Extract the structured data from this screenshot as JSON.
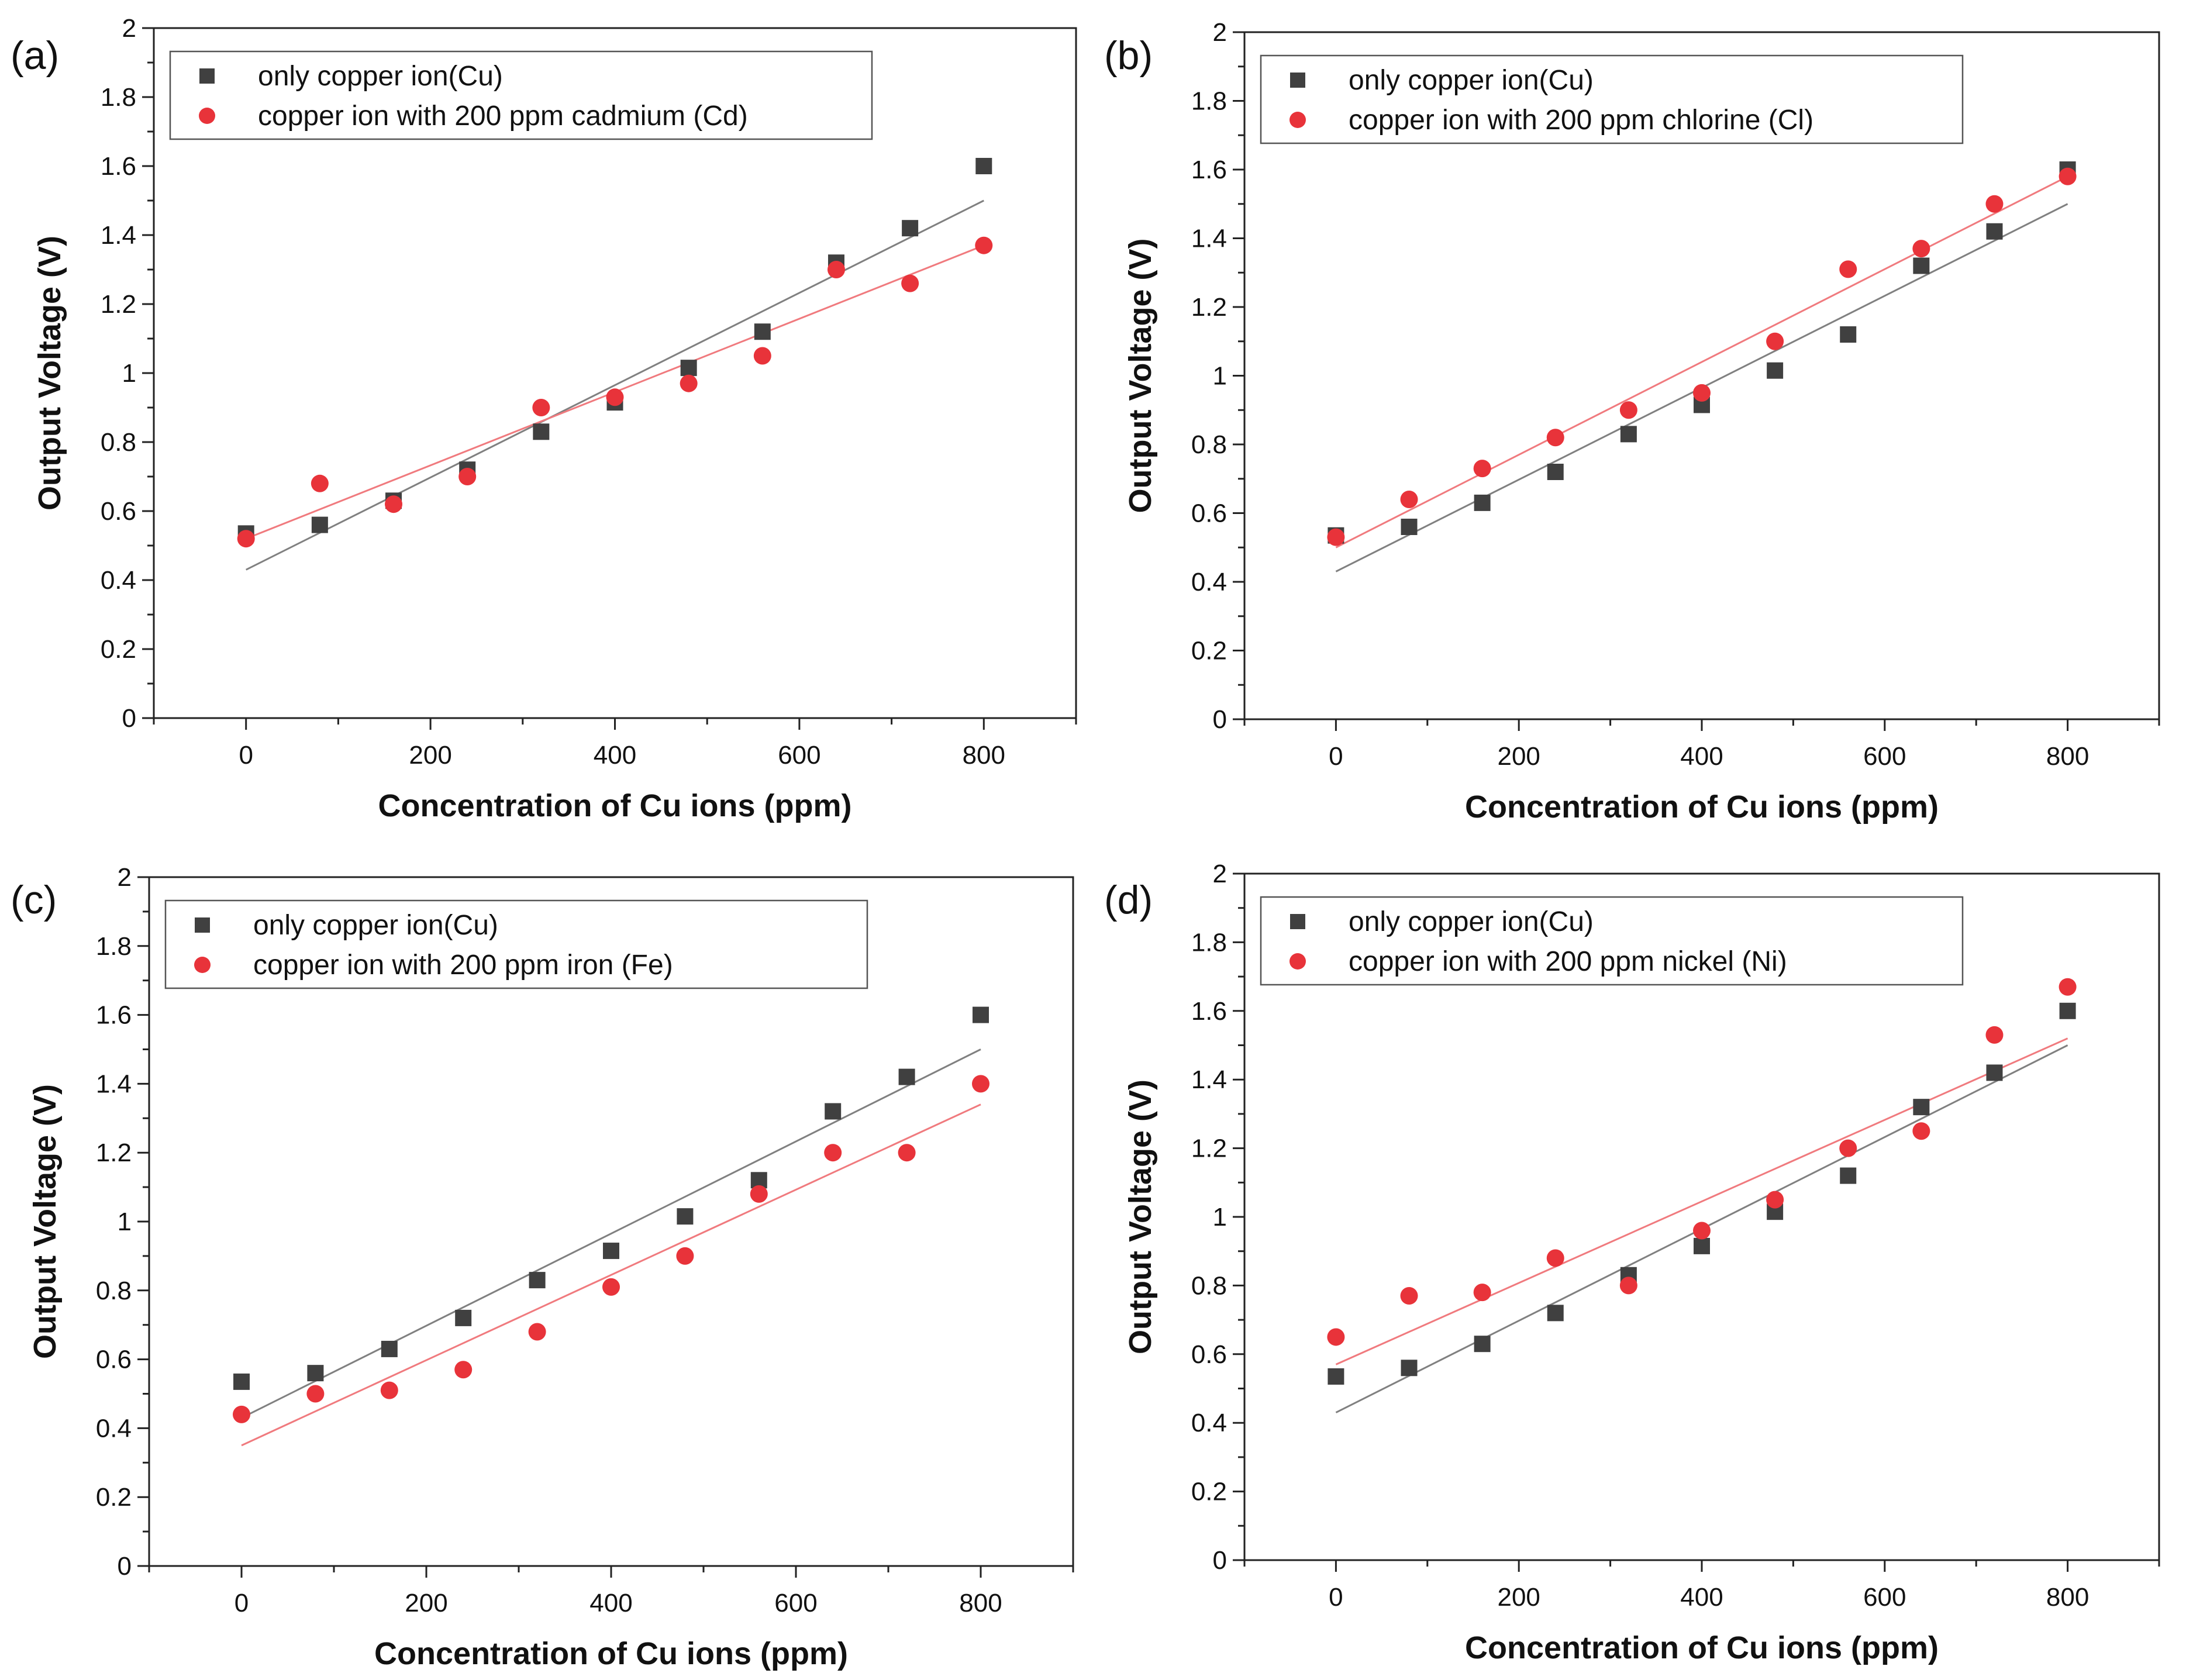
{
  "chart_data": [
    {
      "type": "scatter",
      "panel_label": "(a)",
      "xlabel": "Concentration of Cu ions (ppm)",
      "ylabel": "Output Voltage (V)",
      "xlim": [
        -100,
        900
      ],
      "ylim": [
        0,
        2
      ],
      "xticks": [
        "0",
        "200",
        "400",
        "600",
        "800"
      ],
      "yticks": [
        "0",
        "0.2",
        "0.4",
        "0.6",
        "0.8",
        "1",
        "1.2",
        "1.4",
        "1.6",
        "1.8",
        "2"
      ],
      "legend_position": "top-left",
      "grid": false,
      "series": [
        {
          "name": "only copper ion(Cu)",
          "marker": "square",
          "color": "#404040",
          "x": [
            0,
            80,
            160,
            240,
            320,
            400,
            480,
            560,
            640,
            720,
            800
          ],
          "y": [
            0.535,
            0.56,
            0.63,
            0.72,
            0.83,
            0.915,
            1.015,
            1.12,
            1.32,
            1.42,
            1.6
          ],
          "fit": [
            0.43,
            1.5
          ]
        },
        {
          "name": "copper ion with 200 ppm cadmium (Cd)",
          "marker": "circle",
          "color": "#e8333a",
          "x": [
            0,
            80,
            160,
            240,
            320,
            400,
            480,
            560,
            640,
            720,
            800
          ],
          "y": [
            0.52,
            0.68,
            0.62,
            0.7,
            0.9,
            0.93,
            0.97,
            1.05,
            1.3,
            1.26,
            1.37
          ],
          "fit": [
            0.52,
            1.37
          ]
        }
      ]
    },
    {
      "type": "scatter",
      "panel_label": "(b)",
      "xlabel": "Concentration of Cu ions (ppm)",
      "ylabel": "Output Voltage (V)",
      "xlim": [
        -100,
        900
      ],
      "ylim": [
        0,
        2
      ],
      "xticks": [
        "0",
        "200",
        "400",
        "600",
        "800"
      ],
      "yticks": [
        "0",
        "0.2",
        "0.4",
        "0.6",
        "0.8",
        "1",
        "1.2",
        "1.4",
        "1.6",
        "1.8",
        "2"
      ],
      "legend_position": "top-left",
      "grid": false,
      "series": [
        {
          "name": "only copper ion(Cu)",
          "marker": "square",
          "color": "#404040",
          "x": [
            0,
            80,
            160,
            240,
            320,
            400,
            480,
            560,
            640,
            720,
            800
          ],
          "y": [
            0.535,
            0.56,
            0.63,
            0.72,
            0.83,
            0.915,
            1.015,
            1.12,
            1.32,
            1.42,
            1.6
          ],
          "fit": [
            0.43,
            1.5
          ]
        },
        {
          "name": "copper ion with 200 ppm chlorine (Cl)",
          "marker": "circle",
          "color": "#e8333a",
          "x": [
            0,
            80,
            160,
            240,
            320,
            400,
            480,
            560,
            640,
            720,
            800
          ],
          "y": [
            0.53,
            0.64,
            0.73,
            0.82,
            0.9,
            0.95,
            1.1,
            1.31,
            1.37,
            1.5,
            1.58
          ],
          "fit": [
            0.5,
            1.58
          ]
        }
      ]
    },
    {
      "type": "scatter",
      "panel_label": "(c)",
      "xlabel": "Concentration of Cu ions (ppm)",
      "ylabel": "Output Voltage (V)",
      "xlim": [
        -100,
        900
      ],
      "ylim": [
        0,
        2
      ],
      "xticks": [
        "0",
        "200",
        "400",
        "600",
        "800"
      ],
      "yticks": [
        "0",
        "0.2",
        "0.4",
        "0.6",
        "0.8",
        "1",
        "1.2",
        "1.4",
        "1.6",
        "1.8",
        "2"
      ],
      "legend_position": "top-left",
      "grid": false,
      "series": [
        {
          "name": "only copper ion(Cu)",
          "marker": "square",
          "color": "#404040",
          "x": [
            0,
            80,
            160,
            240,
            320,
            400,
            480,
            560,
            640,
            720,
            800
          ],
          "y": [
            0.535,
            0.56,
            0.63,
            0.72,
            0.83,
            0.915,
            1.015,
            1.12,
            1.32,
            1.42,
            1.6
          ],
          "fit": [
            0.43,
            1.5
          ]
        },
        {
          "name": "copper ion with 200 ppm iron (Fe)",
          "marker": "circle",
          "color": "#e8333a",
          "x": [
            0,
            80,
            160,
            240,
            320,
            400,
            480,
            560,
            640,
            720,
            800
          ],
          "y": [
            0.44,
            0.5,
            0.51,
            0.57,
            0.68,
            0.81,
            0.9,
            1.08,
            1.2,
            1.2,
            1.4
          ],
          "fit": [
            0.35,
            1.34
          ]
        }
      ]
    },
    {
      "type": "scatter",
      "panel_label": "(d)",
      "xlabel": "Concentration of Cu ions (ppm)",
      "ylabel": "Output Voltage (V)",
      "xlim": [
        -100,
        900
      ],
      "ylim": [
        0,
        2
      ],
      "xticks": [
        "0",
        "200",
        "400",
        "600",
        "800"
      ],
      "yticks": [
        "0",
        "0.2",
        "0.4",
        "0.6",
        "0.8",
        "1",
        "1.2",
        "1.4",
        "1.6",
        "1.8",
        "2"
      ],
      "legend_position": "top-left",
      "grid": false,
      "series": [
        {
          "name": "only copper ion(Cu)",
          "marker": "square",
          "color": "#404040",
          "x": [
            0,
            80,
            160,
            240,
            320,
            400,
            480,
            560,
            640,
            720,
            800
          ],
          "y": [
            0.535,
            0.56,
            0.63,
            0.72,
            0.83,
            0.915,
            1.015,
            1.12,
            1.32,
            1.42,
            1.6
          ],
          "fit": [
            0.43,
            1.5
          ]
        },
        {
          "name": "copper ion with 200 ppm nickel (Ni)",
          "marker": "circle",
          "color": "#e8333a",
          "x": [
            0,
            80,
            160,
            240,
            320,
            400,
            480,
            560,
            640,
            720,
            800
          ],
          "y": [
            0.65,
            0.77,
            0.78,
            0.88,
            0.8,
            0.96,
            1.05,
            1.2,
            1.25,
            1.53,
            1.67
          ],
          "fit": [
            0.57,
            1.52
          ]
        }
      ]
    }
  ]
}
